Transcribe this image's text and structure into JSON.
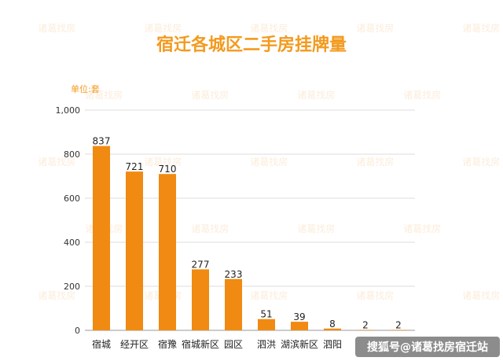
{
  "watermark": {
    "text": "诸葛找房"
  },
  "credit": {
    "text": "搜狐号@诸葛找房宿迁站"
  },
  "chart_data": {
    "type": "bar",
    "title": "宿迁各城区二手房挂牌量",
    "unit_label": "单位:套",
    "categories": [
      "宿城",
      "经开区",
      "宿豫",
      "宿城新区",
      "园区",
      "泗洪",
      "湖滨新区",
      "泗阳",
      "",
      ""
    ],
    "values": [
      837,
      721,
      710,
      277,
      233,
      51,
      39,
      8,
      2,
      2
    ],
    "ylim": [
      0,
      1000
    ],
    "yticks": [
      0,
      200,
      400,
      600,
      800,
      1000
    ],
    "ytick_labels": [
      "0",
      "200",
      "400",
      "600",
      "800",
      "1,000"
    ],
    "grid": true,
    "bar_color": "#f08a12"
  }
}
